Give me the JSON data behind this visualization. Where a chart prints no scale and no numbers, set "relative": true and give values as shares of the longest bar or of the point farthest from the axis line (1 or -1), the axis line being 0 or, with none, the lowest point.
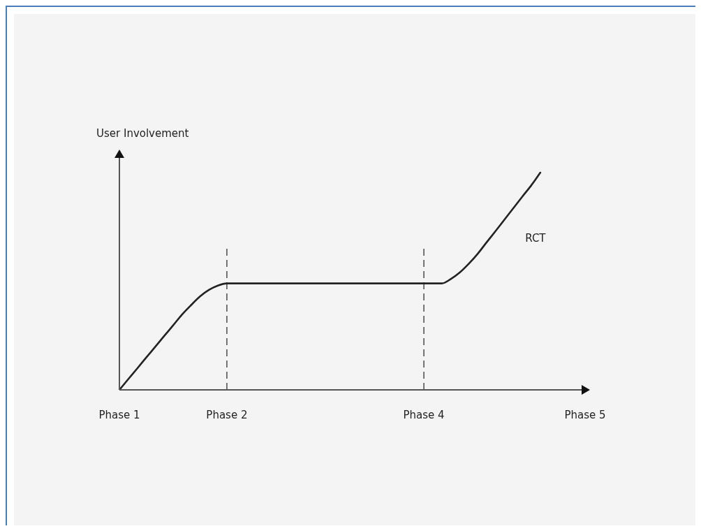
{
  "chart_data": {
    "type": "line",
    "ylabel": "User Involvement",
    "relative": true,
    "categories": [
      "Phase 1",
      null,
      null,
      null,
      null,
      null,
      null,
      null,
      null,
      null,
      null,
      null,
      "Phase 2",
      null,
      null,
      null,
      null,
      null,
      null,
      null,
      null,
      null,
      null,
      null,
      null,
      null,
      null,
      null,
      null,
      null,
      null,
      null,
      null,
      null,
      "Phase 4",
      null,
      null,
      null,
      null,
      null,
      null,
      null,
      null,
      null,
      null,
      null,
      null,
      null,
      null,
      null,
      null,
      null,
      "Phase 5"
    ],
    "series": [
      {
        "name": "RCT",
        "color": "#222222",
        "values": [
          0,
          0.05,
          0.099,
          0.149,
          0.198,
          0.248,
          0.297,
          0.347,
          0.39,
          0.43,
          0.46,
          0.48,
          0.49,
          0.49,
          0.49,
          0.49,
          0.49,
          0.49,
          0.49,
          0.49,
          0.49,
          0.49,
          0.49,
          0.49,
          0.49,
          0.49,
          0.49,
          0.49,
          0.49,
          0.49,
          0.49,
          0.49,
          0.49,
          0.49,
          0.49,
          0.49,
          0.49,
          0.51,
          0.54,
          0.58,
          0.626,
          0.679,
          0.731,
          0.784,
          0.837,
          0.89,
          0.942,
          1,
          null,
          null,
          null,
          null,
          null
        ]
      }
    ],
    "ref_lines": [
      {
        "axis": "x",
        "value": "Phase 2",
        "color": "#555555",
        "line_style": "dashed"
      },
      {
        "axis": "x",
        "value": "Phase 4",
        "color": "#555555",
        "line_style": "dashed"
      }
    ],
    "grid": false,
    "legend": false,
    "marker": "none",
    "line_style": "solid"
  }
}
